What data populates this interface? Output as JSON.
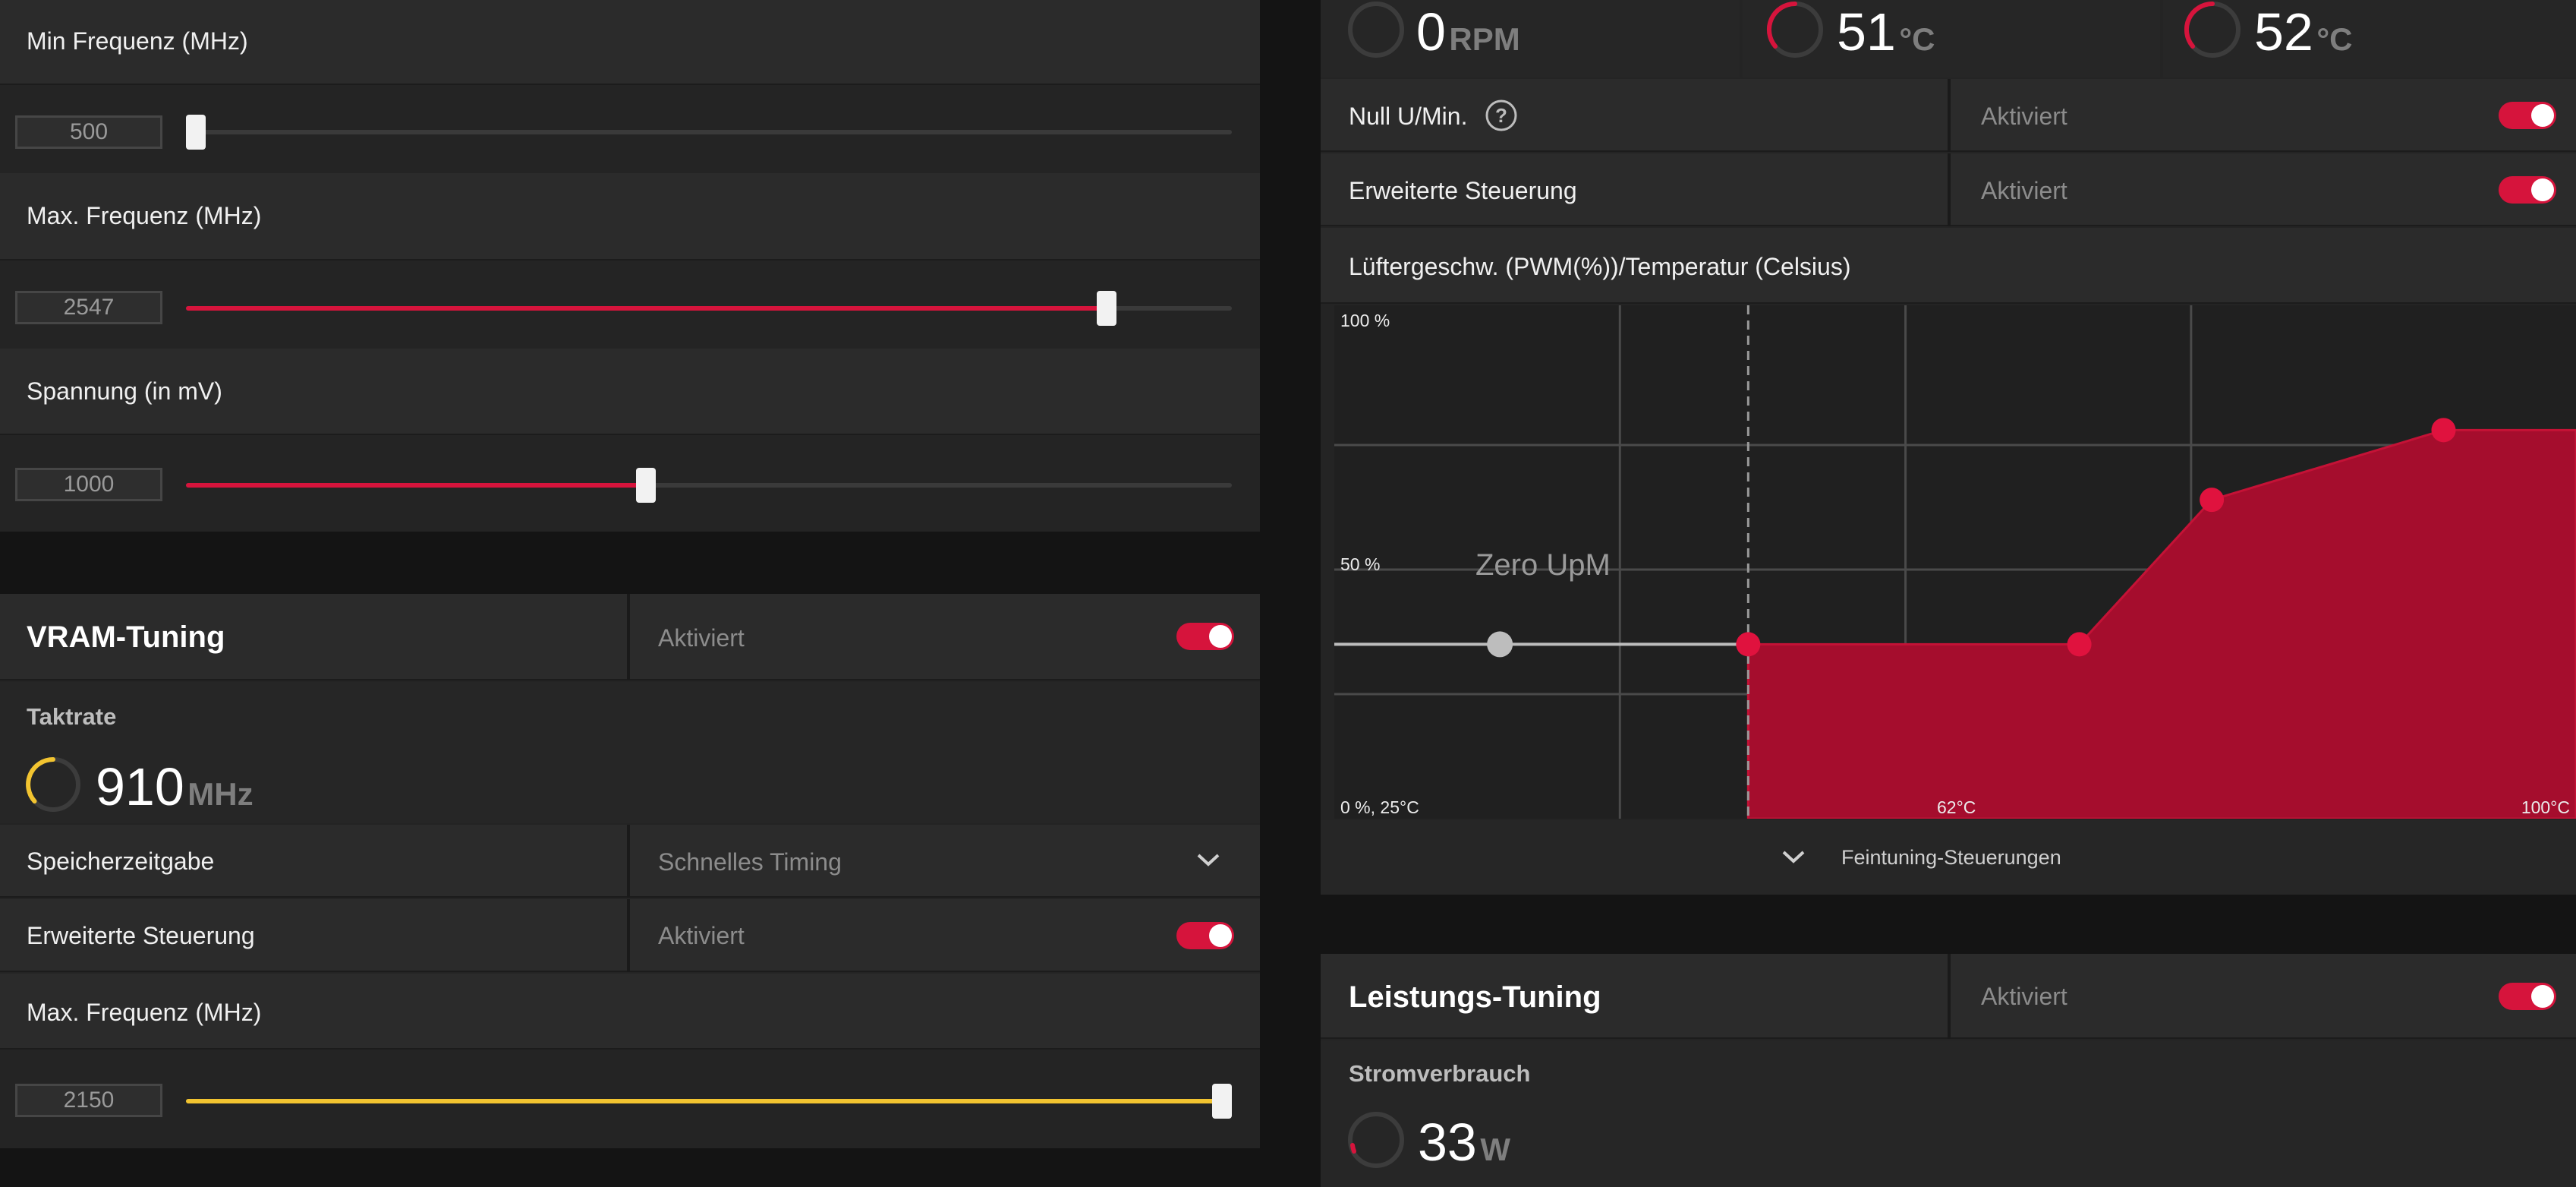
{
  "gpu": {
    "min_freq_label": "Min Frequenz (MHz)",
    "min_freq": {
      "value": "500",
      "fraction": 0.0
    },
    "max_freq_label": "Max. Frequenz (MHz)",
    "max_freq": {
      "value": "2547",
      "fraction": 0.88
    },
    "voltage_label": "Spannung (in mV)",
    "voltage": {
      "value": "1000",
      "fraction": 0.44
    }
  },
  "vram": {
    "title": "VRAM-Tuning",
    "status": "Aktiviert",
    "clock_label": "Taktrate",
    "clock_value": "910",
    "clock_unit": "MHz",
    "timing_label": "Speicherzeitgabe",
    "timing_value": "Schnelles Timing",
    "advanced_label": "Erweiterte Steuerung",
    "advanced_status": "Aktiviert",
    "max_freq_label": "Max. Frequenz (MHz)",
    "max_freq": {
      "value": "2150",
      "fraction": 1.0
    }
  },
  "fan": {
    "rpm_value": "0",
    "rpm_unit": "RPM",
    "temp1_value": "51",
    "temp1_unit": "°C",
    "temp2_value": "52",
    "temp2_unit": "°C",
    "zero_rpm_label": "Null U/Min.",
    "zero_rpm_status": "Aktiviert",
    "advanced_label": "Erweiterte Steuerung",
    "advanced_status": "Aktiviert",
    "curve_title": "Lüftergeschw. (PWM(%))/Temperatur (Celsius)",
    "fine_tuning_label": "Feintuning-Steuerungen"
  },
  "power": {
    "title": "Leistungs-Tuning",
    "status": "Aktiviert",
    "consumption_label": "Stromverbrauch",
    "consumption_value": "33",
    "consumption_unit": "W"
  },
  "colors": {
    "accent": "#d6143c",
    "vram_accent": "#f2c430",
    "curve_fill": "#a50d2d"
  },
  "chart_data": {
    "type": "area",
    "title": "Lüftergeschw. (PWM(%))/Temperatur (Celsius)",
    "y_top_label": "100 %",
    "y_mid_label": "50 %",
    "origin_label": "0 %, 25°C",
    "x_mid_label": "62°C",
    "x_max_label": "100°C",
    "zero_zone_label": "Zero UpM",
    "xlim": [
      25,
      100
    ],
    "ylim": [
      0,
      100
    ],
    "zero_rpm_point": {
      "x": 35,
      "y": 35
    },
    "series": [
      {
        "x": [
          50,
          70,
          78,
          92,
          100
        ],
        "y": [
          35,
          35,
          64,
          78,
          78
        ]
      }
    ]
  }
}
